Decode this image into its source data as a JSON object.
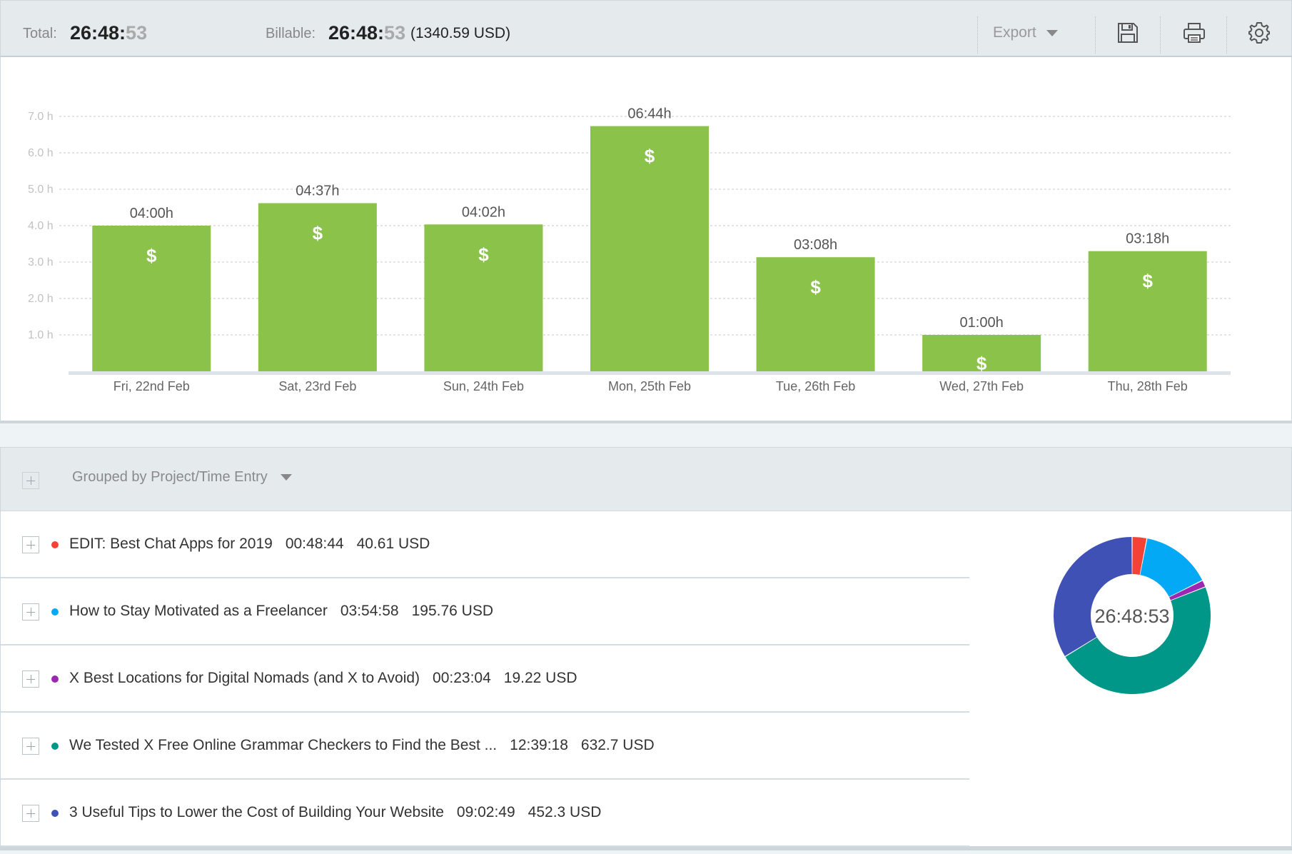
{
  "header": {
    "total_label": "Total:",
    "total_hm": "26:48:",
    "total_sec": "53",
    "billable_label": "Billable:",
    "billable_hm": "26:48:",
    "billable_sec": "53",
    "billable_usd": "(1340.59 USD)",
    "export_label": "Export",
    "icons": [
      "save-icon",
      "print-icon",
      "settings-icon"
    ]
  },
  "chart_data": {
    "type": "bar",
    "categories": [
      "Fri, 22nd Feb",
      "Sat, 23rd Feb",
      "Sun, 24th Feb",
      "Mon, 25th Feb",
      "Tue, 26th Feb",
      "Wed, 27th Feb",
      "Thu, 28th Feb"
    ],
    "values": [
      4.0,
      4.617,
      4.033,
      6.733,
      3.133,
      1.0,
      3.3
    ],
    "data_labels": [
      "04:00h",
      "04:37h",
      "04:02h",
      "06:44h",
      "03:08h",
      "01:00h",
      "03:18h"
    ],
    "bar_symbol": "$",
    "y_ticks": [
      "1.0 h",
      "2.0 h",
      "3.0 h",
      "4.0 h",
      "5.0 h",
      "6.0 h",
      "7.0 h"
    ],
    "ylim": [
      0,
      7
    ],
    "grid": true,
    "bar_color": "#8bc34a"
  },
  "grouping": {
    "label": "Grouped by Project/Time Entry"
  },
  "entries": [
    {
      "title": "EDIT: Best Chat Apps for 2019",
      "duration": "00:48:44",
      "amount": "40.61 USD",
      "color": "#f44336"
    },
    {
      "title": "How to Stay Motivated as a Freelancer",
      "duration": "03:54:58",
      "amount": "195.76 USD",
      "color": "#03a9f4"
    },
    {
      "title": "X Best Locations for Digital Nomads (and X to Avoid)",
      "duration": "00:23:04",
      "amount": "19.22 USD",
      "color": "#9c27b0"
    },
    {
      "title": "We Tested X Free Online Grammar Checkers to Find the Best ...",
      "duration": "12:39:18",
      "amount": "632.7 USD",
      "color": "#009688"
    },
    {
      "title": "3 Useful Tips to Lower the Cost of Building Your Website",
      "duration": "09:02:49",
      "amount": "452.3 USD",
      "color": "#3f51b5"
    }
  ],
  "donut": {
    "center_label": "26:48:53",
    "slices": [
      {
        "name": "EDIT: Best Chat Apps for 2019",
        "value": 2924,
        "color": "#f44336"
      },
      {
        "name": "How to Stay Motivated as a Freelancer",
        "value": 14098,
        "color": "#03a9f4"
      },
      {
        "name": "X Best Locations for Digital Nomads (and X to Avoid)",
        "value": 1384,
        "color": "#9c27b0"
      },
      {
        "name": "We Tested X Free Online Grammar Checkers to Find the Best ...",
        "value": 45558,
        "color": "#009688"
      },
      {
        "name": "3 Useful Tips to Lower the Cost of Building Your Website",
        "value": 32569,
        "color": "#3f51b5"
      }
    ]
  }
}
